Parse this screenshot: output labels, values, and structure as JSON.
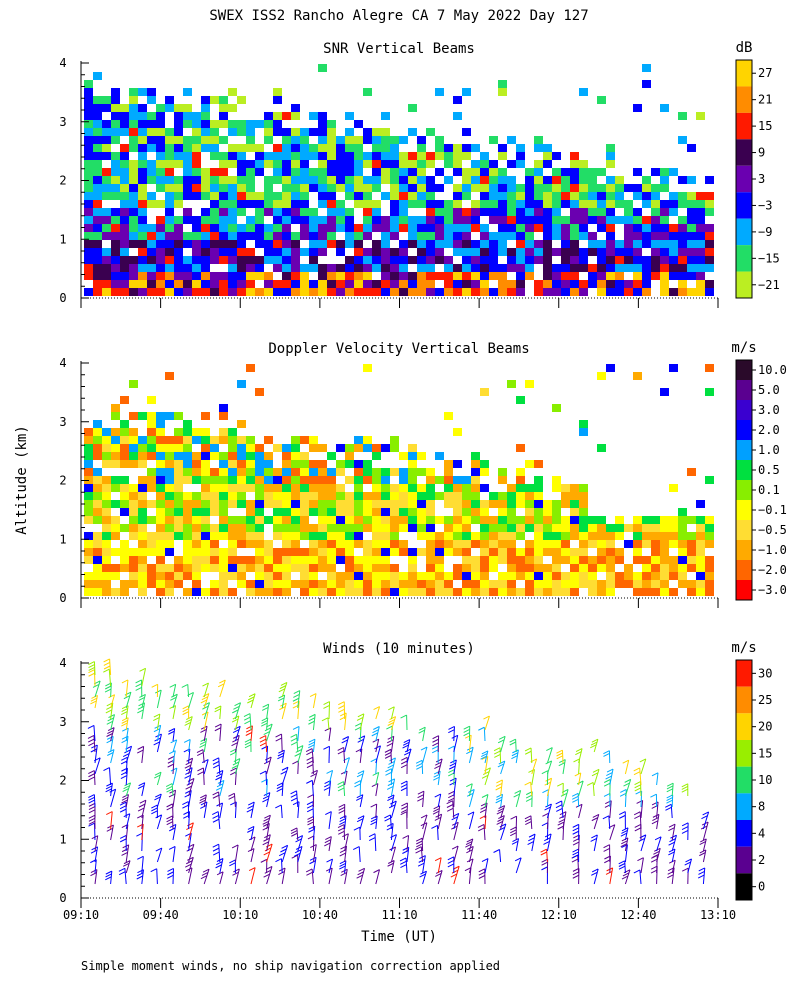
{
  "figure": {
    "title": "SWEX ISS2 Rancho Alegre CA   7 May 2022 Day 127",
    "ylabel": "Altitude (km)",
    "xlabel": "Time (UT)",
    "footnote": "Simple moment winds, no ship navigation correction applied"
  },
  "chart_data": [
    {
      "type": "heatmap",
      "title": "SNR Vertical Beams",
      "x_ticks": [
        "09:10",
        "09:40",
        "10:10",
        "10:40",
        "11:10",
        "11:40",
        "12:10",
        "12:40",
        "13:10"
      ],
      "y_ticks": [
        "0",
        "1",
        "2",
        "3",
        "4"
      ],
      "ylim": [
        0,
        4
      ],
      "colorbar": {
        "unit": "dB",
        "labels": [
          "27",
          "21",
          "15",
          "9",
          "3",
          "−3",
          "−9",
          "−15",
          "−21"
        ],
        "colors": [
          "#ffd400",
          "#ff8c00",
          "#ff1a00",
          "#3a0050",
          "#6a00b0",
          "#0000ff",
          "#00aaff",
          "#22dd66",
          "#bbee22"
        ]
      }
    },
    {
      "type": "heatmap",
      "title": "Doppler Velocity Vertical Beams",
      "x_ticks": [
        "09:10",
        "09:40",
        "10:10",
        "10:40",
        "11:10",
        "11:40",
        "12:10",
        "12:40",
        "13:10"
      ],
      "y_ticks": [
        "0",
        "1",
        "2",
        "3",
        "4"
      ],
      "ylim": [
        0,
        4
      ],
      "colorbar": {
        "unit": "m/s",
        "labels": [
          "10.0",
          "5.0",
          "3.0",
          "2.0",
          "1.0",
          "0.5",
          "0.1",
          "−0.1",
          "−0.5",
          "−1.0",
          "−2.0",
          "−3.0"
        ],
        "colors": [
          "#2a0a2a",
          "#5a0090",
          "#3a00d0",
          "#0000ff",
          "#00a0ff",
          "#00e040",
          "#88ee00",
          "#ffff00",
          "#ffdd33",
          "#ffaa00",
          "#ff6600",
          "#ff0000"
        ]
      }
    },
    {
      "type": "scatter",
      "title": "Winds (10 minutes)",
      "x_ticks": [
        "09:10",
        "09:40",
        "10:10",
        "10:40",
        "11:10",
        "11:40",
        "12:10",
        "12:40",
        "13:10"
      ],
      "y_ticks": [
        "0",
        "1",
        "2",
        "3",
        "4"
      ],
      "ylim": [
        0,
        4
      ],
      "colorbar": {
        "unit": "m/s",
        "labels": [
          "30",
          "25",
          "20",
          "15",
          "10",
          "8",
          "4",
          "2",
          "0"
        ],
        "colors": [
          "#ff1a00",
          "#ff8c00",
          "#ffd400",
          "#99ee00",
          "#22dd66",
          "#00aaff",
          "#0000ff",
          "#5a0090",
          "#000000"
        ]
      }
    }
  ]
}
